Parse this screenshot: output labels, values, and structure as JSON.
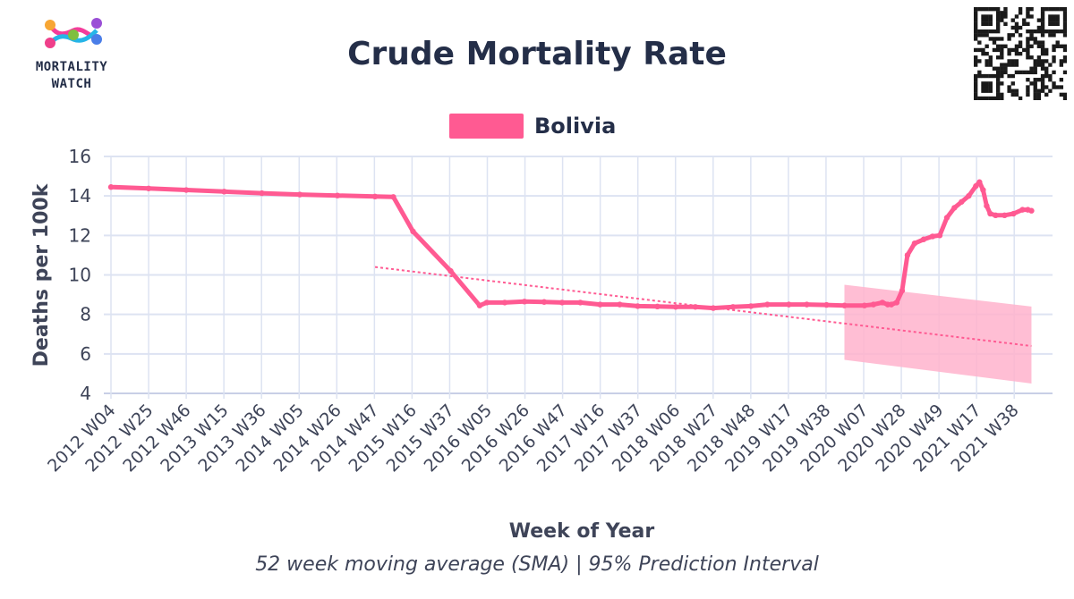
{
  "logo": {
    "text": "MORTALITY\nWATCH"
  },
  "colors": {
    "series": "#ff5a92",
    "trend": "#ff5a92",
    "pi_fill": "#ffb3cd",
    "grid": "#dde3f2",
    "text": "#242e48",
    "axis_text": "#3e4458"
  },
  "chart_data": {
    "type": "line",
    "title": "Crude Mortality Rate",
    "xlabel": "Week of Year",
    "ylabel": "Deaths per 100k",
    "subtitle": "52 week moving average (SMA) | 95% Prediction Interval",
    "ylim": [
      4,
      16
    ],
    "yticks": [
      4,
      6,
      8,
      10,
      12,
      14,
      16
    ],
    "grid": true,
    "legend_position": "top-center",
    "x_tick_labels": [
      "2012 W04",
      "2012 W25",
      "2012 W46",
      "2013 W15",
      "2013 W36",
      "2014 W05",
      "2014 W26",
      "2014 W47",
      "2015 W16",
      "2015 W37",
      "2016 W05",
      "2016 W26",
      "2016 W47",
      "2017 W16",
      "2017 W37",
      "2018 W06",
      "2018 W27",
      "2018 W48",
      "2019 W17",
      "2019 W38",
      "2020 W07",
      "2020 W28",
      "2020 W49",
      "2021 W17",
      "2021 W38"
    ],
    "series": [
      {
        "name": "Bolivia",
        "x": [
          "2012 W04",
          "2012 W25",
          "2012 W46",
          "2013 W15",
          "2013 W36",
          "2014 W05",
          "2014 W26",
          "2014 W47",
          "2015 W05",
          "2015 W16",
          "2015 W37",
          "2016 W01",
          "2016 W05",
          "2016 W15",
          "2016 W26",
          "2016 W37",
          "2016 W47",
          "2017 W05",
          "2017 W16",
          "2017 W27",
          "2017 W37",
          "2017 W48",
          "2018 W06",
          "2018 W17",
          "2018 W27",
          "2018 W38",
          "2018 W48",
          "2019 W05",
          "2019 W17",
          "2019 W27",
          "2019 W38",
          "2019 W48",
          "2020 W07",
          "2020 W12",
          "2020 W17",
          "2020 W20",
          "2020 W22",
          "2020 W25",
          "2020 W28",
          "2020 W31",
          "2020 W35",
          "2020 W40",
          "2020 W45",
          "2020 W49",
          "2020 W53",
          "2021 W05",
          "2021 W09",
          "2021 W13",
          "2021 W17",
          "2021 W19",
          "2021 W21",
          "2021 W23",
          "2021 W25",
          "2021 W28",
          "2021 W33",
          "2021 W38",
          "2021 W43",
          "2021 W46",
          "2021 W48"
        ],
        "values": [
          14.45,
          14.38,
          14.3,
          14.22,
          14.14,
          14.07,
          14.02,
          13.97,
          13.95,
          12.2,
          10.2,
          8.45,
          8.6,
          8.6,
          8.65,
          8.63,
          8.6,
          8.6,
          8.5,
          8.5,
          8.42,
          8.4,
          8.38,
          8.38,
          8.32,
          8.38,
          8.42,
          8.5,
          8.5,
          8.5,
          8.48,
          8.45,
          8.45,
          8.5,
          8.6,
          8.5,
          8.5,
          8.6,
          9.2,
          11.0,
          11.6,
          11.8,
          11.95,
          12.0,
          12.9,
          13.4,
          13.7,
          14.0,
          14.5,
          14.7,
          14.3,
          13.5,
          13.1,
          13.02,
          13.02,
          13.1,
          13.3,
          13.3,
          13.25
        ]
      }
    ],
    "trend": {
      "x": [
        "2014 W47",
        "2021 W48"
      ],
      "values": [
        10.4,
        6.4
      ]
    },
    "prediction_interval": {
      "x": [
        "2019 W48",
        "2021 W48"
      ],
      "upper": [
        9.5,
        8.4
      ],
      "lower": [
        5.7,
        4.5
      ]
    }
  }
}
